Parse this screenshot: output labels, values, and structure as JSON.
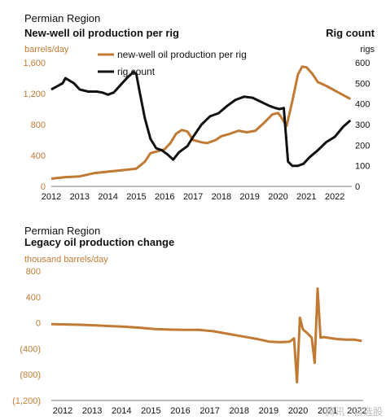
{
  "colors": {
    "oil": "#c07a33",
    "rig": "#111111",
    "axis": "#777777"
  },
  "chart_data": [
    {
      "type": "line",
      "region": "Permian Region",
      "title": "New-well oil production per rig",
      "ylabel_left": "barrels/day",
      "right_title": "Rig count",
      "ylabel_right": "rigs",
      "x_ticks": [
        "2012",
        "2013",
        "2014",
        "2015",
        "2016",
        "2017",
        "2018",
        "2019",
        "2020",
        "2021",
        "2022"
      ],
      "xlim": [
        2012.0,
        2022.6
      ],
      "ylim_left": [
        0,
        1600
      ],
      "yticks_left": [
        "0",
        "400",
        "800",
        "1,200",
        "1,600"
      ],
      "ylim_right": [
        0,
        600
      ],
      "yticks_right": [
        "0",
        "100",
        "200",
        "300",
        "400",
        "500",
        "600"
      ],
      "legend": "top-center",
      "series": [
        {
          "name": "new-well oil production per rig",
          "axis": "left",
          "x": [
            2012.0,
            2012.5,
            2013.0,
            2013.5,
            2014.0,
            2014.5,
            2015.0,
            2015.3,
            2015.5,
            2015.8,
            2016.0,
            2016.2,
            2016.4,
            2016.6,
            2016.8,
            2017.0,
            2017.3,
            2017.5,
            2017.8,
            2018.0,
            2018.3,
            2018.6,
            2018.9,
            2019.2,
            2019.5,
            2019.8,
            2020.0,
            2020.1,
            2020.3,
            2020.5,
            2020.7,
            2020.85,
            2021.0,
            2021.2,
            2021.4,
            2021.7,
            2022.0,
            2022.3,
            2022.55
          ],
          "y": [
            100,
            120,
            130,
            170,
            190,
            210,
            230,
            320,
            430,
            460,
            480,
            560,
            680,
            730,
            710,
            600,
            570,
            560,
            600,
            650,
            680,
            720,
            700,
            720,
            820,
            930,
            950,
            900,
            780,
            1100,
            1450,
            1550,
            1540,
            1460,
            1350,
            1300,
            1240,
            1180,
            1130
          ]
        },
        {
          "name": "rig count",
          "axis": "right",
          "x": [
            2012.0,
            2012.2,
            2012.4,
            2012.5,
            2012.8,
            2013.0,
            2013.3,
            2013.6,
            2013.8,
            2014.0,
            2014.2,
            2014.5,
            2014.7,
            2014.9,
            2015.0,
            2015.1,
            2015.3,
            2015.5,
            2015.7,
            2015.9,
            2016.1,
            2016.3,
            2016.5,
            2016.8,
            2017.0,
            2017.3,
            2017.6,
            2017.9,
            2018.2,
            2018.5,
            2018.8,
            2019.1,
            2019.4,
            2019.7,
            2019.9,
            2020.05,
            2020.2,
            2020.35,
            2020.5,
            2020.7,
            2020.9,
            2021.1,
            2021.4,
            2021.7,
            2022.0,
            2022.3,
            2022.55
          ],
          "y": [
            470,
            485,
            500,
            525,
            500,
            470,
            460,
            460,
            455,
            445,
            455,
            500,
            530,
            555,
            545,
            470,
            330,
            230,
            185,
            175,
            155,
            130,
            165,
            195,
            240,
            300,
            340,
            355,
            390,
            420,
            435,
            430,
            410,
            390,
            380,
            375,
            380,
            120,
            100,
            100,
            110,
            140,
            175,
            215,
            240,
            290,
            320
          ]
        }
      ]
    },
    {
      "type": "line",
      "region": "Permian Region",
      "title": "Legacy oil production change",
      "ylabel": "thousand barrels/day",
      "x_ticks": [
        "2012",
        "2013",
        "2014",
        "2015",
        "2016",
        "2017",
        "2018",
        "2019",
        "2020",
        "2021",
        "2022"
      ],
      "xlim": [
        2012.0,
        2022.6
      ],
      "ylim": [
        -1200,
        800
      ],
      "yticks": [
        "800",
        "400",
        "0",
        "(400)",
        "(800)",
        "(1,200)"
      ],
      "series": [
        {
          "name": "",
          "x": [
            2012.0,
            2012.5,
            2013.0,
            2013.5,
            2014.0,
            2014.5,
            2015.0,
            2015.5,
            2016.0,
            2016.5,
            2017.0,
            2017.5,
            2018.0,
            2018.5,
            2019.0,
            2019.4,
            2019.8,
            2020.1,
            2020.25,
            2020.35,
            2020.45,
            2020.55,
            2020.7,
            2020.85,
            2020.95,
            2021.05,
            2021.15,
            2021.25,
            2021.4,
            2021.7,
            2022.0,
            2022.3,
            2022.55
          ],
          "y": [
            -20,
            -25,
            -30,
            -40,
            -50,
            -60,
            -75,
            -95,
            -105,
            -110,
            -110,
            -130,
            -170,
            -210,
            -250,
            -290,
            -300,
            -290,
            -240,
            -920,
            80,
            -100,
            -160,
            -230,
            -620,
            530,
            -230,
            -220,
            -230,
            -250,
            -260,
            -260,
            -280
          ]
        }
      ]
    }
  ],
  "watermark": "腾讯 · 自选股"
}
